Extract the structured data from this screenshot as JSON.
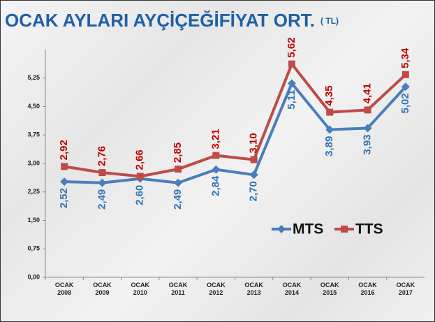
{
  "chart_data": {
    "type": "line",
    "title": "OCAK AYLARI AYÇİÇEĞİFİYAT ORT.",
    "title_unit": "( TL)",
    "categories": [
      "OCAK 2008",
      "OCAK 2009",
      "OCAK 2010",
      "OCAK 2011",
      "OCAK 2012",
      "OCAK 2013",
      "OCAK 2014",
      "OCAK 2015",
      "OCAK 2016",
      "OCAK 2017"
    ],
    "series": [
      {
        "name": "MTS",
        "color": "#4a7ebb",
        "label_color": "#2e75b6",
        "values": [
          2.52,
          2.49,
          2.6,
          2.49,
          2.84,
          2.7,
          5.11,
          3.89,
          3.93,
          5.02
        ],
        "value_labels": [
          "2,52",
          "2,49",
          "2,60",
          "2,49",
          "2,84",
          "2,70",
          "5,11",
          "3,89",
          "3,93",
          "5,02"
        ]
      },
      {
        "name": "TTS",
        "color": "#be4b48",
        "label_color": "#c00000",
        "values": [
          2.92,
          2.76,
          2.66,
          2.85,
          3.21,
          3.1,
          5.62,
          4.35,
          4.41,
          5.34
        ],
        "value_labels": [
          "2,92",
          "2,76",
          "2,66",
          "2,85",
          "3,21",
          "3,10",
          "5,62",
          "4,35",
          "4,41",
          "5,34"
        ]
      }
    ],
    "ylim": [
      0,
      6
    ],
    "yticks": [
      {
        "value": 0,
        "label": "0,00"
      },
      {
        "value": 0.75,
        "label": "0,75"
      },
      {
        "value": 1.5,
        "label": "1,50"
      },
      {
        "value": 2.25,
        "label": "2,25"
      },
      {
        "value": 3,
        "label": "3,00"
      },
      {
        "value": 3.75,
        "label": "3,75"
      },
      {
        "value": 4.5,
        "label": "4,50"
      },
      {
        "value": 5.25,
        "label": "5,25"
      }
    ],
    "legend": "center-right"
  }
}
